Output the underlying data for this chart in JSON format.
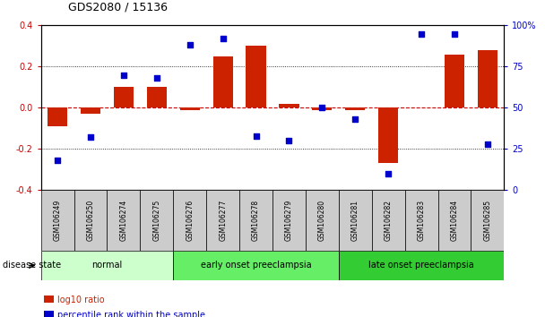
{
  "title": "GDS2080 / 15136",
  "samples": [
    "GSM106249",
    "GSM106250",
    "GSM106274",
    "GSM106275",
    "GSM106276",
    "GSM106277",
    "GSM106278",
    "GSM106279",
    "GSM106280",
    "GSM106281",
    "GSM106282",
    "GSM106283",
    "GSM106284",
    "GSM106285"
  ],
  "log10_ratio": [
    -0.09,
    -0.03,
    0.1,
    0.1,
    -0.01,
    0.25,
    0.3,
    0.02,
    -0.01,
    -0.01,
    -0.27,
    0.0,
    0.26,
    0.28
  ],
  "percentile_rank": [
    18,
    32,
    70,
    68,
    88,
    92,
    33,
    30,
    50,
    43,
    10,
    95,
    95,
    28
  ],
  "groups": [
    {
      "label": "normal",
      "start": 0,
      "end": 3,
      "color": "#ccffcc"
    },
    {
      "label": "early onset preeclampsia",
      "start": 4,
      "end": 8,
      "color": "#66ee66"
    },
    {
      "label": "late onset preeclampsia",
      "start": 9,
      "end": 13,
      "color": "#33cc33"
    }
  ],
  "bar_color": "#cc2200",
  "dot_color": "#0000cc",
  "zero_line_color": "#cc0000",
  "ylim_left": [
    -0.4,
    0.4
  ],
  "ylim_right": [
    0,
    100
  ],
  "yticks_left": [
    -0.4,
    -0.2,
    0.0,
    0.2,
    0.4
  ],
  "yticks_right": [
    0,
    25,
    50,
    75,
    100
  ],
  "ytick_labels_right": [
    "0",
    "25",
    "50",
    "75",
    "100%"
  ],
  "sample_box_color": "#cccccc",
  "legend_items": [
    {
      "label": "log10 ratio",
      "color": "#cc2200"
    },
    {
      "label": "percentile rank within the sample",
      "color": "#0000cc"
    }
  ],
  "disease_state_label": "disease state",
  "title_fontsize": 9,
  "tick_fontsize": 7,
  "sample_fontsize": 5.5,
  "group_fontsize": 7,
  "legend_fontsize": 7
}
